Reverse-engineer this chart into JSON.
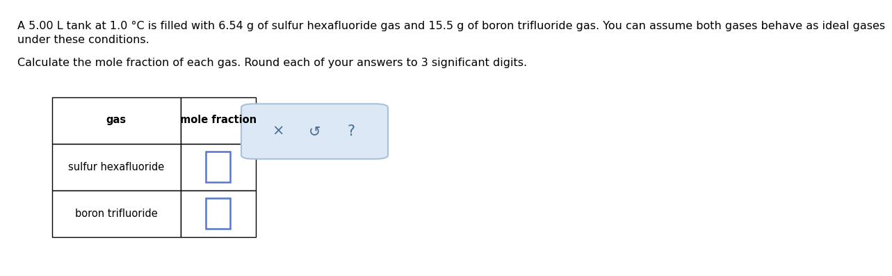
{
  "background_color": "#ffffff",
  "line1": "A 5.00 L tank at 1.0 °C is filled with 6.54 g of sulfur hexafluoride gas and 15.5 g of boron trifluoride gas. You can assume both gases behave as ideal gases",
  "line2": "under these conditions.",
  "line3": "Calculate the mole fraction of each gas. Round each of your answers to 3 significant digits.",
  "header_col1": "gas",
  "header_col2": "mole fraction",
  "row1": "sulfur hexafluoride",
  "row2": "boron trifluoride",
  "input_box_fill": "#dce8f5",
  "input_box_border": "#a8c0d8",
  "input_field_border": "#5577cc",
  "symbols": [
    "×",
    "↺",
    "?"
  ],
  "symbol_color": "#4a7090",
  "text_color": "#000000",
  "font_size_body": 11.5,
  "font_size_table": 10.5,
  "font_size_symbols": 15
}
